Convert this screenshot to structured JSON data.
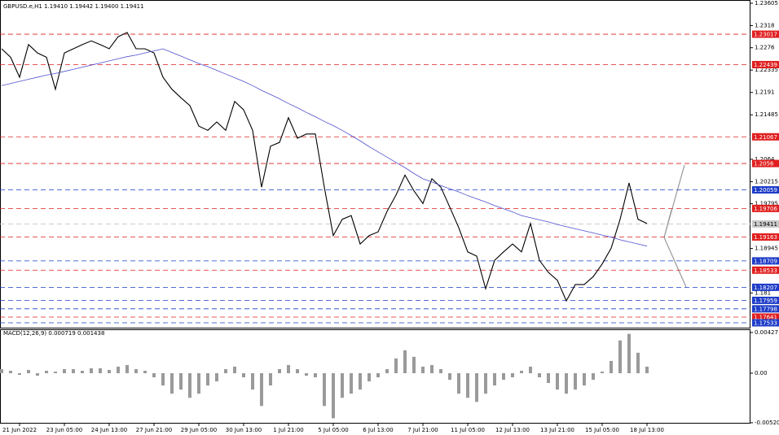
{
  "chart_data": [
    {
      "type": "line",
      "title": "GBPUSD.e,H1  1.19410 1.19442 1.19400 1.19411",
      "categories": [
        null,
        null,
        "21 Jun 2022",
        null,
        null,
        null,
        null,
        "23 Jun 05:00",
        null,
        null,
        null,
        null,
        "24 Jun 13:00",
        null,
        null,
        null,
        null,
        "27 Jun 21:00",
        null,
        null,
        null,
        null,
        "29 Jun 05:00",
        null,
        null,
        null,
        null,
        "30 Jun 13:00",
        null,
        null,
        null,
        null,
        "1 Jul 21:00",
        null,
        null,
        null,
        null,
        "5 Jul 05:00",
        null,
        null,
        null,
        null,
        "6 Jul 13:00",
        null,
        null,
        null,
        null,
        "7 Jul 21:00",
        null,
        null,
        null,
        null,
        "11 Jul 05:00",
        null,
        null,
        null,
        null,
        "12 Jul 13:00",
        null,
        null,
        null,
        null,
        "13 Jul 21:00",
        null,
        null,
        null,
        null,
        "15 Jul 05:00",
        null,
        null,
        null,
        null,
        "18 Jul 13:00"
      ],
      "series": [
        {
          "color": "#000000",
          "values": [
            1.2274,
            1.2258,
            1.222,
            1.2282,
            1.2266,
            1.2258,
            1.2197,
            1.2266,
            1.2274,
            1.2282,
            1.2289,
            1.2282,
            1.2274,
            1.2297,
            1.2305,
            1.2274,
            1.2274,
            1.2266,
            1.222,
            1.2197,
            1.2181,
            1.2166,
            1.2127,
            1.2119,
            1.2135,
            1.2119,
            1.2174,
            1.2158,
            1.2119,
            1.2011,
            1.2089,
            1.2096,
            1.2143,
            1.2104,
            1.2112,
            1.2112,
            1.2011,
            1.1919,
            1.195,
            1.1957,
            1.1903,
            1.1919,
            1.1926,
            1.1965,
            1.1996,
            1.2034,
            1.2004,
            1.198,
            1.2027,
            1.2011,
            1.1973,
            1.1934,
            1.1888,
            1.188,
            1.1818,
            1.1872,
            1.1888,
            1.1903,
            1.1888,
            1.1942,
            1.1872,
            1.1849,
            1.1834,
            1.1795,
            1.1826,
            1.1826,
            1.1841,
            1.1865,
            1.1895,
            1.195,
            1.2019,
            1.195,
            1.1942
          ]
        },
        {
          "color": "#5050d0",
          "values": [
            1.2204,
            1.2208,
            1.2212,
            1.2216,
            1.222,
            1.2224,
            1.2227,
            1.2231,
            1.2235,
            1.2239,
            1.2243,
            1.2247,
            1.2251,
            1.2255,
            1.2259,
            1.2262,
            1.2266,
            1.227,
            1.2274,
            1.2267,
            1.226,
            1.2253,
            1.2246,
            1.224,
            1.2233,
            1.2226,
            1.2219,
            1.2212,
            1.2204,
            1.2195,
            1.2187,
            1.2179,
            1.217,
            1.2162,
            1.2153,
            1.2145,
            1.2136,
            1.2128,
            1.2119,
            1.2109,
            1.2099,
            1.2088,
            1.2078,
            1.2068,
            1.2058,
            1.2048,
            1.2037,
            1.2027,
            1.2021,
            1.2014,
            1.2008,
            1.2002,
            1.1995,
            1.1989,
            1.1983,
            1.1976,
            1.197,
            1.1964,
            1.1957,
            1.1953,
            1.1949,
            1.1945,
            1.194,
            1.1936,
            1.1932,
            1.1928,
            1.1924,
            1.192,
            1.1916,
            1.1911,
            1.1907,
            1.1903,
            1.1899
          ]
        }
      ],
      "ylim": [
        1.1744,
        1.23667
      ],
      "yticks": [
        1.23605,
        1.2318,
        1.2276,
        1.22335,
        1.2191,
        1.21485,
        1.2064,
        1.20215,
        1.19795,
        1.18945,
        1.181
      ],
      "levels": [
        {
          "value": 1.23017,
          "color": "#e01e1e"
        },
        {
          "value": 1.22439,
          "color": "#e01e1e"
        },
        {
          "value": 1.21067,
          "color": "#e01e1e"
        },
        {
          "value": 1.2056,
          "color": "#e01e1e"
        },
        {
          "value": 1.20059,
          "color": "#1e3cc8"
        },
        {
          "value": 1.19706,
          "color": "#e01e1e"
        },
        {
          "value": 1.19411,
          "color": "#c8c8c8"
        },
        {
          "value": 1.19163,
          "color": "#e01e1e"
        },
        {
          "value": 1.18709,
          "color": "#1e3cc8"
        },
        {
          "value": 1.18533,
          "color": "#e01e1e"
        },
        {
          "value": 1.18207,
          "color": "#1e3cc8"
        },
        {
          "value": 1.17959,
          "color": "#1e3cc8"
        },
        {
          "value": 1.17798,
          "color": "#1e3cc8"
        },
        {
          "value": 1.17641,
          "color": "#e01e1e"
        },
        {
          "value": 1.17533,
          "color": "#1e3cc8"
        }
      ]
    },
    {
      "type": "bar",
      "title": "MACD(12,26,9) 0.000719 0.001438",
      "color": "#9a9a9a",
      "values": [
        0.00043,
        0.00026,
        -0.00017,
        0.00034,
        -0.00026,
        0.00026,
        0.00017,
        0.00043,
        0.00043,
        0.00026,
        0.00052,
        0.00052,
        0.00034,
        0.00069,
        0.00086,
        0.00043,
        0.00026,
        -0.00043,
        -0.00129,
        -0.00215,
        -0.00172,
        -0.00258,
        -0.00215,
        -0.00129,
        -0.00086,
        0.00043,
        0.00069,
        -0.00043,
        -0.00172,
        -0.00344,
        -0.00129,
        0.00043,
        0.00086,
        0.00043,
        -0.00026,
        -0.00043,
        -0.00344,
        -0.00473,
        -0.00258,
        -0.00215,
        -0.00172,
        -0.00086,
        -0.00043,
        0.00043,
        0.00155,
        0.00241,
        0.00172,
        0.00069,
        0.00086,
        0.00043,
        -0.00069,
        -0.00215,
        -0.00258,
        -0.00301,
        -0.00215,
        -0.00129,
        -0.00069,
        -0.00043,
        0.00026,
        0.00069,
        -0.00043,
        -0.00103,
        -0.00172,
        -0.00215,
        -0.00172,
        -0.00129,
        -0.00069,
        0.00017,
        0.00129,
        0.00344,
        0.00413,
        0.00215,
        0.00069
      ],
      "ylim": [
        -0.00606,
        0.00461
      ],
      "yticks": [
        0.00427,
        {
          "value": 0,
          "label": "0.00"
        },
        -0.005202
      ]
    }
  ]
}
